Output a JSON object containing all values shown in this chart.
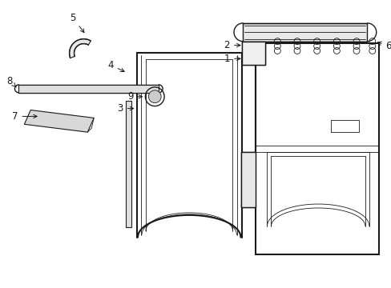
{
  "background_color": "#ffffff",
  "line_color": "#1a1a1a",
  "lw_thick": 1.5,
  "lw_med": 1.0,
  "lw_thin": 0.6,
  "fig_width": 4.89,
  "fig_height": 3.6,
  "font_size": 8.5
}
